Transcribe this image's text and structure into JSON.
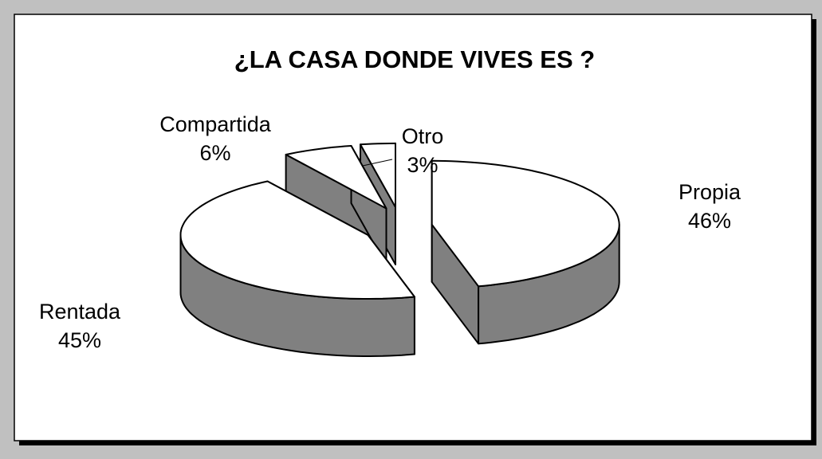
{
  "chart_data": {
    "type": "pie",
    "title": "¿LA CASA DONDE VIVES ES ?",
    "categories": [
      "Propia",
      "Rentada",
      "Compartida",
      "Otro"
    ],
    "values": [
      46,
      45,
      6,
      3
    ],
    "value_labels": [
      "46%",
      "45%",
      "6%",
      "3%"
    ],
    "colors": {
      "top": "#ffffff",
      "side": "#808080"
    }
  }
}
